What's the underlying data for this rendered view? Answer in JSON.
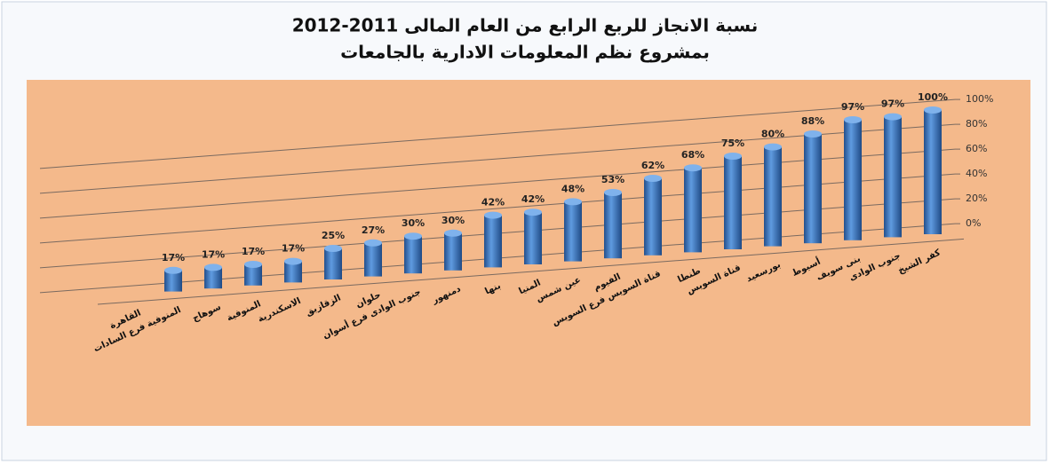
{
  "chart_data": {
    "type": "bar",
    "title": "نسبة الانجاز للربع الرابع من العام المالى 2011-2012",
    "subtitle": "بمشروع نظم المعلومات الادارية بالجامعات",
    "categories": [
      "القاهرة",
      "المنوفية فرع السادات",
      "سوهاج",
      "المنوفية",
      "الاسكندرية",
      "الزقازيق",
      "حلوان",
      "جنوب الوادى فرع أسوان",
      "دمنهور",
      "بنها",
      "المنيا",
      "عين شمس",
      "الفيوم",
      "قناة السويس فرع السويس",
      "طنطا",
      "قناة السويس",
      "بورسعيد",
      "أسيوط",
      "بنى سويف",
      "جنوب الوادى",
      "كفر الشيخ"
    ],
    "values": [
      null,
      17,
      17,
      17,
      17,
      25,
      27,
      30,
      30,
      42,
      42,
      48,
      53,
      62,
      68,
      75,
      80,
      88,
      97,
      97,
      100
    ],
    "value_labels": [
      null,
      "17%",
      "17%",
      "17%",
      "17%",
      "25%",
      "27%",
      "30%",
      "30%",
      "42%",
      "42%",
      "48%",
      "53%",
      "62%",
      "68%",
      "75%",
      "80%",
      "88%",
      "97%",
      "97%",
      "100%"
    ],
    "color": "#3f78c0",
    "ylim": [
      0,
      100
    ],
    "yticks": [
      {
        "value": 0,
        "label": "0%"
      },
      {
        "value": 20,
        "label": "20%"
      },
      {
        "value": 40,
        "label": "40%"
      },
      {
        "value": 60,
        "label": "60%"
      },
      {
        "value": 80,
        "label": "80%"
      },
      {
        "value": 100,
        "label": "100%"
      }
    ],
    "grid": true
  }
}
